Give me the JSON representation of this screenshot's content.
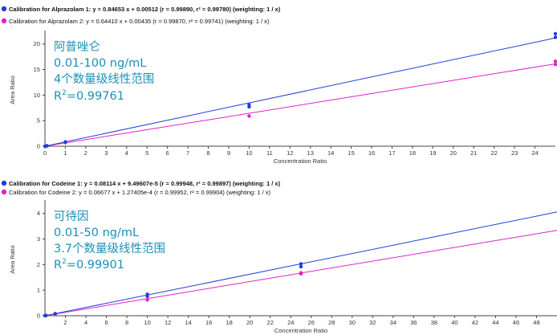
{
  "colors": {
    "series1": "#1f3fd8",
    "series2": "#e020c8",
    "annotation": "#1b8fb8",
    "axis": "#444444"
  },
  "chart_data": [
    {
      "type": "scatter",
      "xlabel": "Concentration Ratio",
      "ylabel": "Area Ratio",
      "xlim": [
        0,
        25
      ],
      "ylim": [
        0,
        22
      ],
      "xticks": [
        0,
        1,
        2,
        3,
        4,
        5,
        6,
        7,
        8,
        9,
        10,
        11,
        12,
        13,
        14,
        15,
        16,
        17,
        18,
        19,
        20,
        21,
        22,
        23,
        24
      ],
      "yticks": [
        0,
        5,
        10,
        15,
        20
      ],
      "grid": false,
      "legend_position": "top-left",
      "series": [
        {
          "legend_prefix": "Calibration for Alprazolam 1",
          "legend_rest": ": y = 0.84653 x + 0.00512 (r = 0.99890, r² = 0.99780)  (weighting: 1 / x)",
          "slope": 0.84653,
          "intercept": 0.00512,
          "points": [
            [
              0.01,
              0.01
            ],
            [
              0.1,
              0.08
            ],
            [
              1,
              0.85
            ],
            [
              10,
              7.7
            ],
            [
              10,
              8.1
            ],
            [
              25,
              21.3
            ],
            [
              25,
              22.0
            ]
          ]
        },
        {
          "legend_prefix": "Calibration for Alprazolam 2",
          "legend_rest": ": y = 0.64410 x + 0.00435 (r = 0.99870, r² = 0.99741)  (weighting: 1 / x)",
          "slope": 0.6441,
          "intercept": 0.00435,
          "points": [
            [
              0.01,
              0.01
            ],
            [
              0.1,
              0.06
            ],
            [
              1,
              0.7
            ],
            [
              10,
              5.9
            ],
            [
              25,
              16.0
            ],
            [
              25,
              16.6
            ]
          ]
        }
      ],
      "annotation": [
        "阿普唑仑",
        "0.01-100 ng/mL",
        "4个数量级线性范围",
        "R",
        "2",
        "=0.99761"
      ]
    },
    {
      "type": "scatter",
      "xlabel": "Concentration Ratio",
      "ylabel": "Area Ratio",
      "xlim": [
        0,
        50
      ],
      "ylim": [
        0,
        4.4
      ],
      "xticks": [
        2,
        4,
        6,
        8,
        10,
        12,
        14,
        16,
        18,
        20,
        22,
        24,
        26,
        28,
        30,
        32,
        34,
        36,
        38,
        40,
        42,
        44,
        46,
        48
      ],
      "yticks": [
        0,
        1,
        2,
        3,
        4
      ],
      "grid": false,
      "legend_position": "top-left",
      "series": [
        {
          "legend_prefix": "Calibration for Codeine 1",
          "legend_rest": ": y = 0.08114 x + 9.49607e-5 (r = 0.99948, r² = 0.99897)  (weighting: 1 / x)",
          "slope": 0.08114,
          "intercept": 9.49607e-05,
          "points": [
            [
              0.01,
              0.001
            ],
            [
              0.1,
              0.009
            ],
            [
              1,
              0.08
            ],
            [
              10,
              0.76
            ],
            [
              10,
              0.84
            ],
            [
              25,
              1.92
            ],
            [
              25,
              2.03
            ]
          ]
        },
        {
          "legend_prefix": "Calibration for Codeine 2",
          "legend_rest": ": y = 0.06677 x + 1.27405e-4 (r = 0.99952, r² = 0.99904)  (weighting: 1 / x)",
          "slope": 0.06677,
          "intercept": 0.000127405,
          "points": [
            [
              0.01,
              0.001
            ],
            [
              0.1,
              0.007
            ],
            [
              1,
              0.065
            ],
            [
              10,
              0.62
            ],
            [
              25,
              1.64
            ],
            [
              25,
              1.68
            ]
          ]
        }
      ],
      "annotation": [
        "可待因",
        "0.01-50 ng/mL",
        "3.7个数量级线性范围",
        "R",
        "2",
        "=0.99901"
      ]
    }
  ]
}
